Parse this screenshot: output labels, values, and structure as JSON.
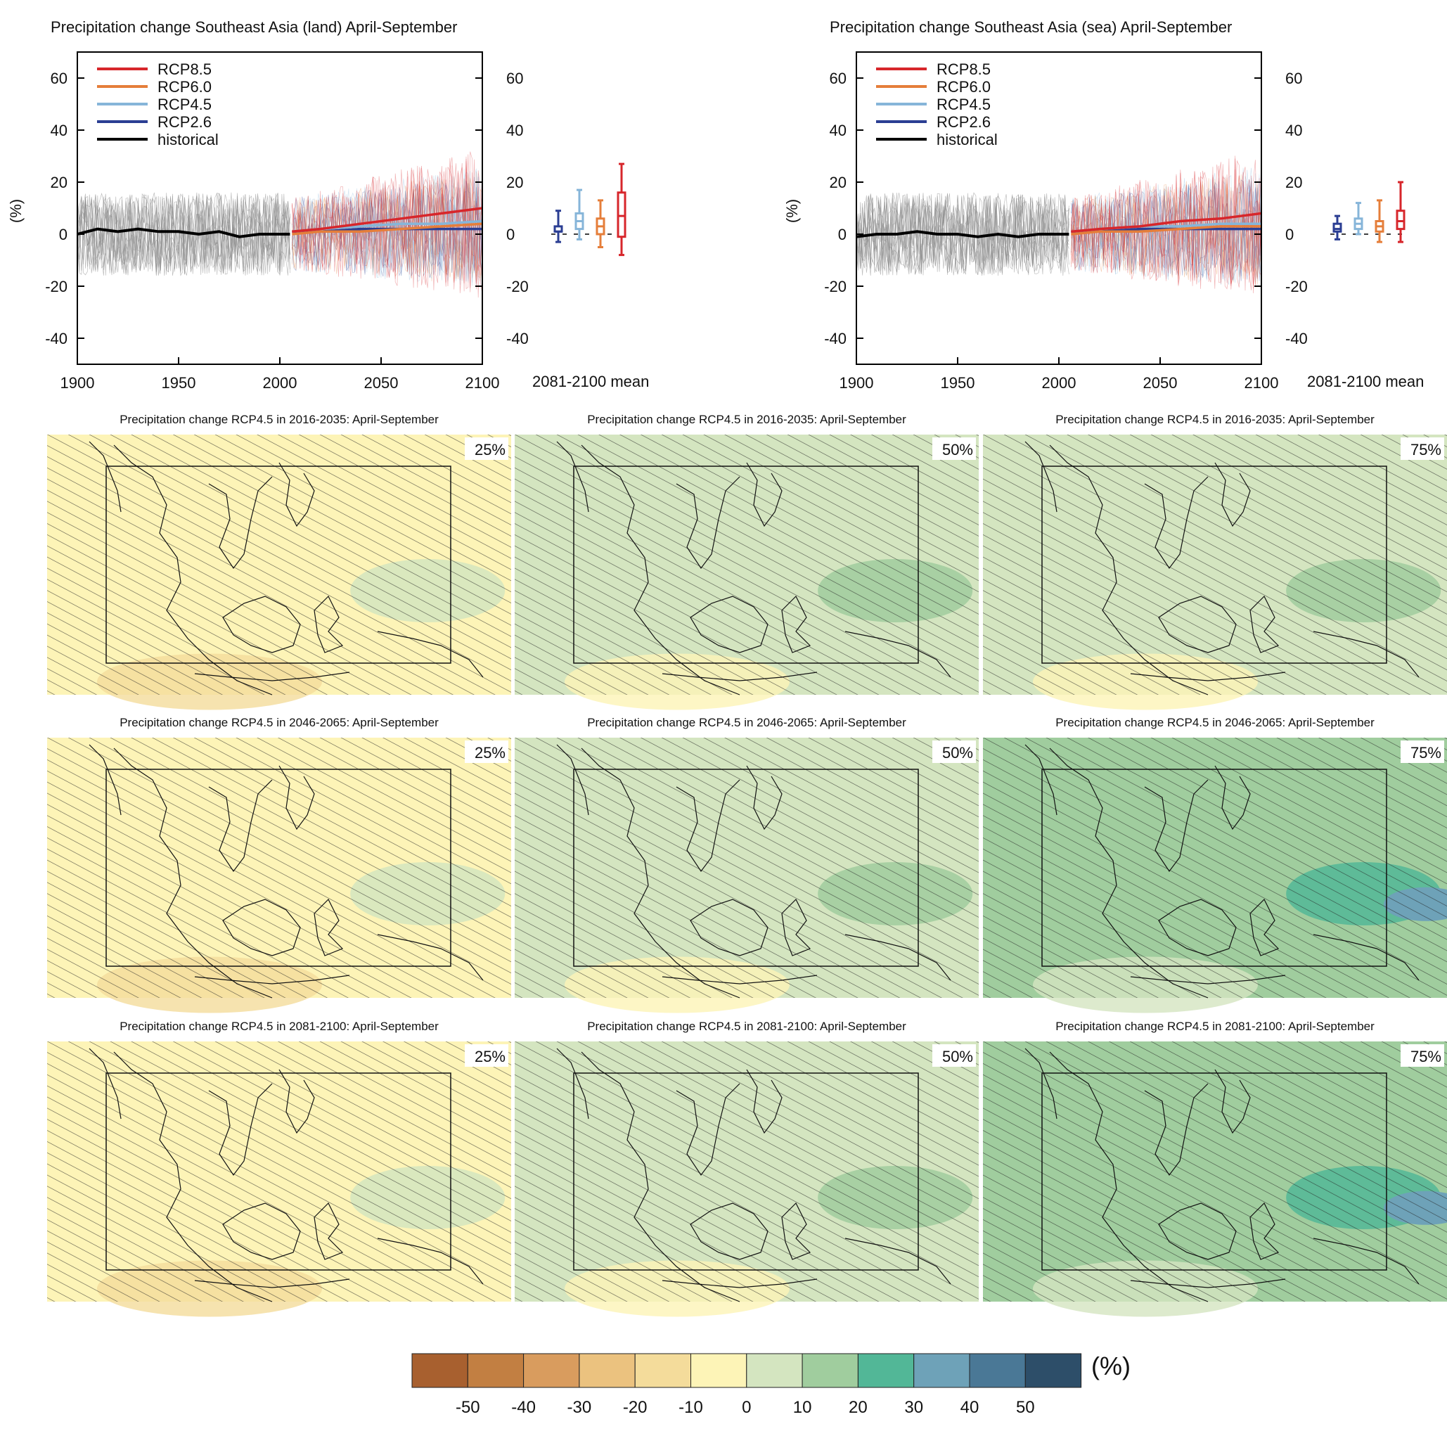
{
  "colors": {
    "rcp85": "#d7262b",
    "rcp60": "#e57e3a",
    "rcp45": "#86b5d9",
    "rcp26": "#2b3e93",
    "historical": "#000000",
    "model_spread": "#8a8a8a"
  },
  "chart_data": [
    {
      "type": "line",
      "title": "Precipitation change Southeast Asia (land) April-September",
      "ylabel": "(%)",
      "xlim": [
        1900,
        2100
      ],
      "ylim": [
        -50,
        70
      ],
      "xticks": [
        1900,
        1950,
        2000,
        2050,
        2100
      ],
      "yticks": [
        -40,
        -20,
        0,
        20,
        40,
        60
      ],
      "legend_position": "top-left",
      "legend": [
        "RCP8.5",
        "RCP6.0",
        "RCP4.5",
        "RCP2.6",
        "historical"
      ],
      "boxplot_label": "2081-2100 mean",
      "series": [
        {
          "name": "historical",
          "x": [
            1900,
            1910,
            1920,
            1930,
            1940,
            1950,
            1960,
            1970,
            1980,
            1990,
            2005
          ],
          "values": [
            0,
            2,
            1,
            2,
            1,
            1,
            0,
            1,
            -1,
            0,
            0
          ]
        },
        {
          "name": "RCP2.6",
          "x": [
            2006,
            2020,
            2040,
            2060,
            2080,
            2100
          ],
          "values": [
            1,
            1,
            2,
            2,
            2,
            2
          ]
        },
        {
          "name": "RCP4.5",
          "x": [
            2006,
            2020,
            2040,
            2060,
            2080,
            2100
          ],
          "values": [
            1,
            2,
            3,
            4,
            4,
            5
          ]
        },
        {
          "name": "RCP6.0",
          "x": [
            2006,
            2020,
            2040,
            2060,
            2080,
            2100
          ],
          "values": [
            0,
            1,
            1,
            2,
            3,
            4
          ]
        },
        {
          "name": "RCP8.5",
          "x": [
            2006,
            2020,
            2040,
            2060,
            2080,
            2100
          ],
          "values": [
            1,
            2,
            4,
            6,
            8,
            10
          ]
        }
      ],
      "boxplots": [
        {
          "name": "RCP2.6",
          "min": -3,
          "q1": 1,
          "median": 1,
          "q3": 3,
          "max": 9
        },
        {
          "name": "RCP4.5",
          "min": -2,
          "q1": 2,
          "median": 5,
          "q3": 8,
          "max": 17
        },
        {
          "name": "RCP6.0",
          "min": -5,
          "q1": 0,
          "median": 3,
          "q3": 6,
          "max": 13
        },
        {
          "name": "RCP8.5",
          "min": -8,
          "q1": -1,
          "median": 7,
          "q3": 16,
          "max": 27
        }
      ]
    },
    {
      "type": "line",
      "title": "Precipitation change Southeast Asia (sea) April-September",
      "ylabel": "(%)",
      "xlim": [
        1900,
        2100
      ],
      "ylim": [
        -50,
        70
      ],
      "xticks": [
        1900,
        1950,
        2000,
        2050,
        2100
      ],
      "yticks": [
        -40,
        -20,
        0,
        20,
        40,
        60
      ],
      "legend_position": "top-left",
      "legend": [
        "RCP8.5",
        "RCP6.0",
        "RCP4.5",
        "RCP2.6",
        "historical"
      ],
      "boxplot_label": "2081-2100 mean",
      "series": [
        {
          "name": "historical",
          "x": [
            1900,
            1910,
            1920,
            1930,
            1940,
            1950,
            1960,
            1970,
            1980,
            1990,
            2005
          ],
          "values": [
            -1,
            0,
            0,
            1,
            0,
            0,
            -1,
            0,
            -1,
            0,
            0
          ]
        },
        {
          "name": "RCP2.6",
          "x": [
            2006,
            2020,
            2040,
            2060,
            2080,
            2100
          ],
          "values": [
            1,
            1,
            2,
            2,
            2,
            2
          ]
        },
        {
          "name": "RCP4.5",
          "x": [
            2006,
            2020,
            2040,
            2060,
            2080,
            2100
          ],
          "values": [
            1,
            2,
            3,
            3,
            4,
            4
          ]
        },
        {
          "name": "RCP6.0",
          "x": [
            2006,
            2020,
            2040,
            2060,
            2080,
            2100
          ],
          "values": [
            0,
            1,
            1,
            2,
            3,
            3
          ]
        },
        {
          "name": "RCP8.5",
          "x": [
            2006,
            2020,
            2040,
            2060,
            2080,
            2100
          ],
          "values": [
            1,
            2,
            3,
            5,
            6,
            8
          ]
        }
      ],
      "boxplots": [
        {
          "name": "RCP2.6",
          "min": -2,
          "q1": 1,
          "median": 2,
          "q3": 4,
          "max": 7
        },
        {
          "name": "RCP4.5",
          "min": 0,
          "q1": 2,
          "median": 4,
          "q3": 6,
          "max": 12
        },
        {
          "name": "RCP6.0",
          "min": -3,
          "q1": 1,
          "median": 3,
          "q3": 5,
          "max": 13
        },
        {
          "name": "RCP8.5",
          "min": -3,
          "q1": 2,
          "median": 5,
          "q3": 9,
          "max": 20
        }
      ]
    },
    {
      "type": "heatmap",
      "maps": [
        {
          "title": "Precipitation change RCP4.5 in 2016-2035: April-September",
          "percentile": "25%",
          "level": -5
        },
        {
          "title": "Precipitation change RCP4.5 in 2016-2035: April-September",
          "percentile": "50%",
          "level": 3
        },
        {
          "title": "Precipitation change RCP4.5 in 2016-2035: April-September",
          "percentile": "75%",
          "level": 8
        },
        {
          "title": "Precipitation change RCP4.5 in 2046-2065: April-September",
          "percentile": "25%",
          "level": -6
        },
        {
          "title": "Precipitation change RCP4.5 in 2046-2065: April-September",
          "percentile": "50%",
          "level": 4
        },
        {
          "title": "Precipitation change RCP4.5 in 2046-2065: April-September",
          "percentile": "75%",
          "level": 10
        },
        {
          "title": "Precipitation change RCP4.5 in 2081-2100: April-September",
          "percentile": "25%",
          "level": -4
        },
        {
          "title": "Precipitation change RCP4.5 in 2081-2100: April-September",
          "percentile": "50%",
          "level": 6
        },
        {
          "title": "Precipitation change RCP4.5 in 2081-2100: April-September",
          "percentile": "75%",
          "level": 13
        }
      ],
      "colorbar": {
        "unit": "(%)",
        "ticks": [
          "-50",
          "-40",
          "-30",
          "-20",
          "-10",
          "0",
          "10",
          "20",
          "30",
          "40",
          "50"
        ],
        "colors": [
          "#a8602f",
          "#c27f42",
          "#d99c5e",
          "#ebc27f",
          "#f4dc9b",
          "#fdf4b7",
          "#d4e5c0",
          "#a0cd9e",
          "#52b797",
          "#6ea2b8",
          "#4a7896",
          "#2d4e69"
        ]
      }
    }
  ]
}
